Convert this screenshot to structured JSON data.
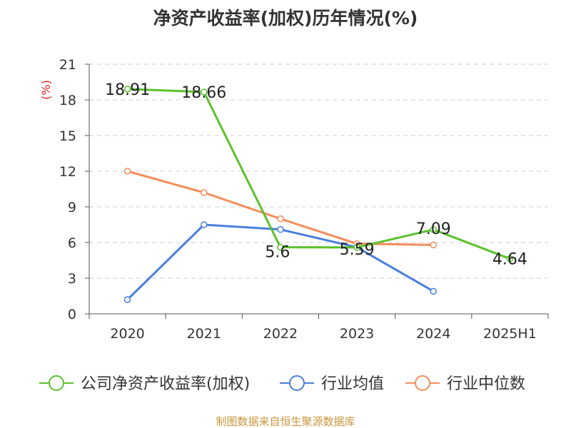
{
  "header": {
    "title": "净资产收益率(加权)历年情况(%)"
  },
  "footer": {
    "source": "制图数据来自恒生聚源数据库"
  },
  "chart_data": {
    "type": "line",
    "title": "净资产收益率(加权)历年情况(%)",
    "ylabel": "(%)",
    "xlabel": "",
    "categories": [
      "2020",
      "2021",
      "2022",
      "2023",
      "2024",
      "2025H1"
    ],
    "ylim": [
      0,
      21
    ],
    "yticks": [
      0,
      3,
      6,
      9,
      12,
      15,
      18,
      21
    ],
    "grid": true,
    "legend_position": "bottom",
    "series": [
      {
        "name": "公司净资产收益率(加权)",
        "color": "#5ac229",
        "values": [
          18.91,
          18.66,
          5.6,
          5.59,
          7.09,
          4.64
        ],
        "labels": [
          "18.91",
          "18.66",
          "5.6",
          "5.59",
          "7.09",
          "4.64"
        ],
        "show_labels": true
      },
      {
        "name": "行业均值",
        "color": "#4a7fdd",
        "values": [
          1.2,
          7.5,
          7.1,
          5.6,
          1.9,
          null
        ],
        "show_labels": false
      },
      {
        "name": "行业中位数",
        "color": "#f48d5c",
        "values": [
          12.0,
          10.2,
          8.0,
          5.9,
          5.8,
          null
        ],
        "show_labels": false
      }
    ]
  }
}
